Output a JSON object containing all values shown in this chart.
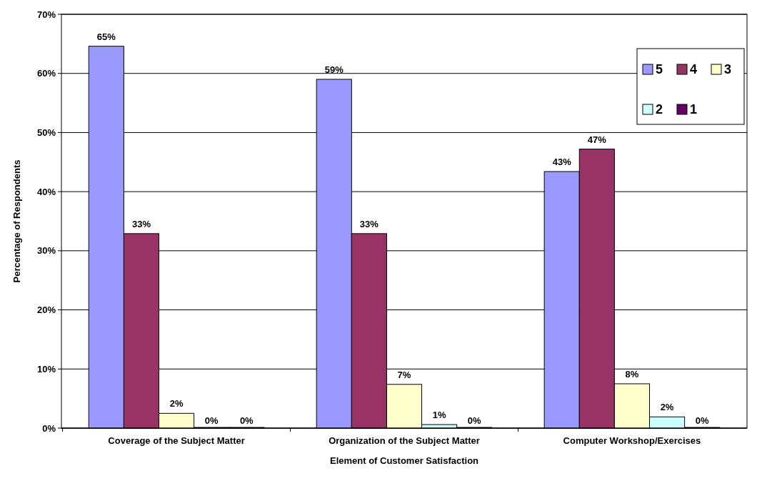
{
  "chart_data": {
    "type": "bar",
    "xlabel": "Element of Customer Satisfaction",
    "ylabel": "Percentage of Respondents",
    "categories": [
      "Coverage of the Subject Matter",
      "Organization of the Subject Matter",
      "Computer Workshop/Exercises"
    ],
    "series": [
      {
        "name": "5",
        "color": "#9999ff",
        "values": [
          64.6,
          59.0,
          43.4
        ],
        "value_labels": [
          "65%",
          "59%",
          "43%"
        ]
      },
      {
        "name": "4",
        "color": "#993366",
        "values": [
          32.9,
          32.9,
          47.2
        ],
        "value_labels": [
          "33%",
          "33%",
          "47%"
        ]
      },
      {
        "name": "3",
        "color": "#ffffcc",
        "values": [
          2.5,
          7.4,
          7.5
        ],
        "value_labels": [
          "2%",
          "7%",
          "8%"
        ]
      },
      {
        "name": "2",
        "color": "#ccffff",
        "values": [
          0,
          0.6,
          1.9
        ],
        "value_labels": [
          "0%",
          "1%",
          "2%"
        ]
      },
      {
        "name": "1",
        "color": "#660066",
        "values": [
          0,
          0,
          0
        ],
        "value_labels": [
          "0%",
          "0%",
          "0%"
        ]
      }
    ],
    "ylim": [
      0,
      70
    ],
    "yticks": [
      {
        "value": 0,
        "label": "0%"
      },
      {
        "value": 10,
        "label": "10%"
      },
      {
        "value": 20,
        "label": "20%"
      },
      {
        "value": 30,
        "label": "30%"
      },
      {
        "value": 40,
        "label": "40%"
      },
      {
        "value": 50,
        "label": "50%"
      },
      {
        "value": 60,
        "label": "60%"
      },
      {
        "value": 70,
        "label": "70%"
      }
    ],
    "grid": "y",
    "legend": "top right"
  }
}
